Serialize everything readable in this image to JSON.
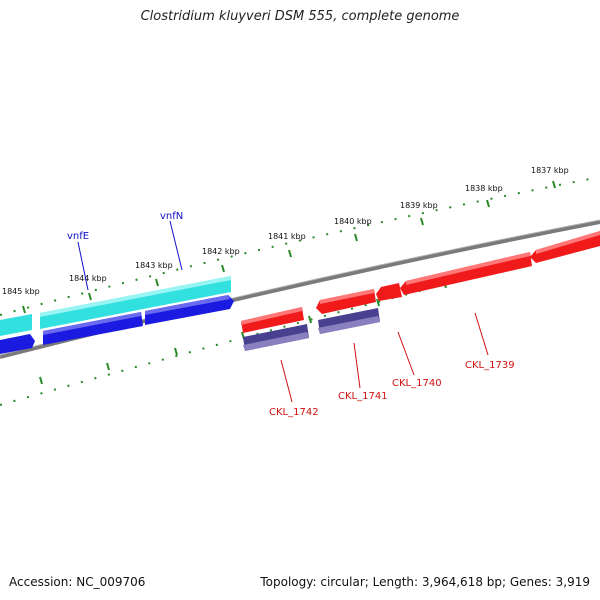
{
  "title": "Clostridium kluyveri DSM 555, complete genome",
  "footer": {
    "accession": "Accession: NC_009706",
    "summary": "Topology: circular; Length: 3,964,618 bp; Genes: 3,919"
  },
  "colors": {
    "backbone": "#808080",
    "tick": "#2a8a2a",
    "cyan_gene": "#33e0e0",
    "blue_gene": "#1a1ae0",
    "red_gene": "#f01a1a",
    "purple_gene": "#4a4090",
    "blue_label": "#1010c8",
    "red_label": "#d01010"
  },
  "kbp_labels": [
    "1837 kbp",
    "1838 kbp",
    "1839 kbp",
    "1840 kbp",
    "1841 kbp",
    "1842 kbp",
    "1843 kbp",
    "1844 kbp",
    "1845 kbp"
  ],
  "gene_labels": {
    "blue": [
      "vnfE",
      "vnfN"
    ],
    "red": [
      "CKL_1742",
      "CKL_1741",
      "CKL_1740",
      "CKL_1739"
    ]
  }
}
